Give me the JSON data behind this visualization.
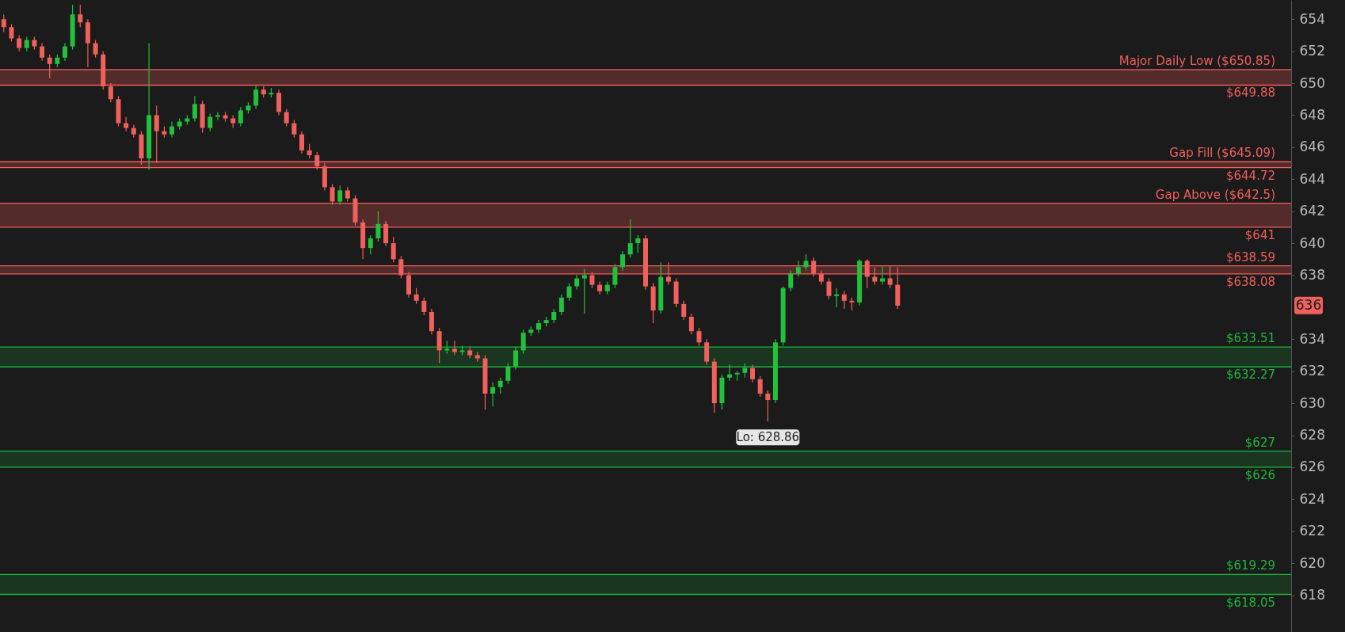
{
  "chart_data": {
    "type": "candlestick",
    "tick_labels": "y",
    "grid": false,
    "categories": [
      null,
      null,
      null,
      null,
      null,
      null,
      null,
      null,
      null,
      null,
      null,
      null,
      null,
      null,
      null,
      null,
      null,
      null,
      null,
      null,
      null,
      null,
      null,
      null,
      null,
      null,
      null,
      null,
      null,
      null,
      null,
      null,
      null,
      null,
      null,
      null,
      null,
      null,
      null,
      null,
      null,
      null,
      null,
      null,
      null,
      null,
      null,
      null,
      null,
      null,
      null,
      null,
      null,
      null,
      null,
      null,
      null,
      null,
      null,
      null,
      null,
      null,
      null,
      null,
      null,
      null,
      null,
      null,
      null,
      null,
      null,
      null,
      null,
      null,
      null,
      null,
      null,
      null,
      null,
      null,
      null,
      null,
      null,
      null,
      null,
      null,
      null,
      null,
      null,
      null,
      null,
      null,
      null,
      null,
      null,
      null,
      null,
      null,
      null,
      null,
      null,
      null,
      null,
      null,
      null,
      null,
      null,
      null,
      null,
      null,
      null,
      null,
      null,
      null,
      null,
      null,
      null,
      null,
      null,
      null,
      null,
      null,
      null,
      null,
      null,
      null,
      null,
      null,
      null,
      null,
      null,
      null,
      null,
      null,
      null,
      null,
      null,
      null,
      null,
      null,
      null,
      null,
      null,
      null,
      null,
      null,
      null,
      null,
      null,
      null,
      null,
      null,
      null,
      null,
      null,
      null,
      null,
      null,
      null,
      null,
      null,
      null,
      null,
      null,
      null,
      null,
      null,
      null,
      null
    ],
    "ohlc": [
      [
        654.0,
        654.3,
        653.2,
        653.5
      ],
      [
        653.5,
        653.7,
        652.6,
        652.8
      ],
      [
        652.8,
        653.0,
        652.0,
        652.2
      ],
      [
        652.2,
        652.9,
        652.0,
        652.7
      ],
      [
        652.7,
        652.9,
        652.1,
        652.3
      ],
      [
        652.3,
        652.5,
        651.4,
        651.6
      ],
      [
        651.6,
        651.8,
        650.3,
        651.2
      ],
      [
        651.2,
        651.8,
        651.0,
        651.6
      ],
      [
        651.6,
        652.5,
        651.4,
        652.3
      ],
      [
        652.3,
        654.9,
        652.1,
        654.3
      ],
      [
        654.3,
        654.9,
        653.5,
        653.8
      ],
      [
        653.8,
        654.0,
        651.0,
        652.5
      ],
      [
        652.5,
        652.7,
        651.6,
        651.8
      ],
      [
        651.8,
        652.0,
        649.6,
        649.8
      ],
      [
        649.8,
        650.0,
        648.8,
        649.0
      ],
      [
        649.0,
        649.2,
        647.3,
        647.5
      ],
      [
        647.5,
        647.9,
        647.0,
        647.2
      ],
      [
        647.2,
        647.4,
        646.6,
        646.8
      ],
      [
        646.8,
        647.0,
        644.9,
        645.3
      ],
      [
        645.3,
        652.5,
        644.6,
        648.0
      ],
      [
        648.0,
        648.6,
        645.0,
        647.0
      ],
      [
        647.0,
        647.3,
        646.6,
        646.8
      ],
      [
        646.8,
        647.6,
        646.6,
        647.3
      ],
      [
        647.3,
        647.8,
        647.1,
        647.6
      ],
      [
        647.6,
        648.0,
        647.4,
        647.8
      ],
      [
        647.8,
        649.2,
        647.6,
        648.7
      ],
      [
        648.7,
        648.9,
        646.9,
        647.2
      ],
      [
        647.2,
        648.1,
        647.0,
        647.9
      ],
      [
        647.9,
        648.2,
        647.7,
        648.0
      ],
      [
        648.0,
        648.2,
        647.6,
        647.8
      ],
      [
        647.8,
        648.0,
        647.2,
        647.5
      ],
      [
        647.5,
        648.5,
        647.3,
        648.3
      ],
      [
        648.3,
        648.8,
        648.1,
        648.6
      ],
      [
        648.6,
        649.9,
        648.4,
        649.6
      ],
      [
        649.6,
        649.8,
        649.1,
        649.3
      ],
      [
        649.3,
        649.7,
        649.1,
        649.4
      ],
      [
        649.4,
        649.6,
        648.0,
        648.2
      ],
      [
        648.2,
        648.4,
        647.3,
        647.5
      ],
      [
        647.5,
        647.7,
        646.6,
        646.8
      ],
      [
        646.8,
        647.0,
        645.6,
        645.8
      ],
      [
        645.8,
        646.2,
        645.3,
        645.5
      ],
      [
        645.5,
        645.7,
        644.6,
        644.8
      ],
      [
        644.8,
        645.0,
        643.3,
        643.5
      ],
      [
        643.5,
        643.7,
        642.4,
        642.6
      ],
      [
        642.6,
        643.6,
        642.4,
        643.3
      ],
      [
        643.3,
        643.5,
        642.6,
        642.8
      ],
      [
        642.8,
        643.0,
        641.1,
        641.3
      ],
      [
        641.3,
        641.5,
        639.0,
        639.7
      ],
      [
        639.7,
        640.5,
        639.3,
        640.3
      ],
      [
        640.3,
        642.0,
        640.1,
        641.2
      ],
      [
        641.2,
        641.4,
        639.8,
        640.0
      ],
      [
        640.0,
        640.4,
        638.8,
        639.0
      ],
      [
        639.0,
        639.2,
        637.8,
        638.0
      ],
      [
        638.0,
        638.2,
        636.6,
        636.8
      ],
      [
        636.8,
        637.2,
        636.2,
        636.4
      ],
      [
        636.4,
        636.6,
        635.5,
        635.7
      ],
      [
        635.7,
        635.9,
        634.3,
        634.5
      ],
      [
        634.5,
        634.7,
        632.5,
        633.3
      ],
      [
        633.3,
        633.9,
        633.1,
        633.4
      ],
      [
        633.4,
        633.9,
        633.0,
        633.2
      ],
      [
        633.2,
        633.6,
        633.0,
        633.3
      ],
      [
        633.3,
        633.5,
        632.8,
        633.0
      ],
      [
        633.0,
        633.2,
        632.6,
        632.8
      ],
      [
        632.8,
        633.0,
        629.6,
        630.6
      ],
      [
        630.6,
        631.3,
        629.8,
        631.0
      ],
      [
        631.0,
        631.6,
        630.6,
        631.4
      ],
      [
        631.4,
        632.5,
        631.2,
        632.3
      ],
      [
        632.3,
        633.5,
        632.1,
        633.3
      ],
      [
        633.3,
        634.6,
        633.1,
        634.4
      ],
      [
        634.4,
        634.8,
        634.2,
        634.6
      ],
      [
        634.6,
        635.2,
        634.4,
        635.0
      ],
      [
        635.0,
        635.4,
        634.8,
        635.2
      ],
      [
        635.2,
        635.9,
        635.0,
        635.7
      ],
      [
        635.7,
        636.8,
        635.5,
        636.6
      ],
      [
        636.6,
        637.5,
        636.4,
        637.3
      ],
      [
        637.3,
        638.0,
        637.1,
        637.8
      ],
      [
        637.8,
        638.4,
        635.6,
        638.0
      ],
      [
        638.0,
        638.2,
        637.2,
        637.4
      ],
      [
        637.4,
        637.6,
        636.8,
        637.0
      ],
      [
        637.0,
        637.6,
        636.8,
        637.4
      ],
      [
        637.4,
        638.7,
        637.2,
        638.5
      ],
      [
        638.5,
        639.5,
        638.3,
        639.3
      ],
      [
        639.3,
        641.5,
        639.1,
        640.0
      ],
      [
        640.0,
        640.5,
        639.4,
        640.3
      ],
      [
        640.3,
        640.5,
        637.1,
        637.3
      ],
      [
        637.3,
        637.5,
        635.0,
        635.8
      ],
      [
        635.8,
        638.8,
        635.6,
        637.9
      ],
      [
        637.9,
        638.8,
        637.4,
        637.6
      ],
      [
        637.6,
        637.8,
        636.0,
        636.2
      ],
      [
        636.2,
        636.4,
        635.2,
        635.4
      ],
      [
        635.4,
        635.6,
        634.3,
        634.5
      ],
      [
        634.5,
        634.7,
        633.6,
        633.8
      ],
      [
        633.8,
        634.0,
        632.4,
        632.6
      ],
      [
        632.6,
        632.8,
        629.4,
        630.0
      ],
      [
        630.0,
        631.8,
        629.6,
        631.6
      ],
      [
        631.6,
        632.4,
        631.4,
        631.8
      ],
      [
        631.8,
        632.0,
        631.4,
        631.9
      ],
      [
        631.9,
        632.5,
        631.6,
        632.2
      ],
      [
        632.2,
        632.4,
        631.3,
        631.5
      ],
      [
        631.5,
        631.7,
        630.4,
        630.6
      ],
      [
        630.6,
        630.8,
        628.86,
        630.2
      ],
      [
        630.2,
        634.0,
        630.0,
        633.8
      ],
      [
        633.8,
        637.3,
        633.6,
        637.2
      ],
      [
        637.2,
        638.3,
        637.0,
        638.1
      ],
      [
        638.1,
        638.9,
        637.9,
        638.5
      ],
      [
        638.5,
        639.3,
        638.3,
        638.9
      ],
      [
        638.9,
        639.1,
        637.9,
        638.1
      ],
      [
        638.1,
        638.3,
        637.4,
        637.6
      ],
      [
        637.6,
        637.8,
        636.5,
        636.7
      ],
      [
        636.7,
        637.2,
        636.0,
        636.8
      ],
      [
        636.8,
        637.0,
        635.9,
        636.4
      ],
      [
        636.4,
        636.6,
        635.8,
        636.3
      ],
      [
        636.3,
        639.0,
        636.1,
        638.9
      ],
      [
        638.9,
        639.0,
        637.2,
        637.9
      ],
      [
        637.9,
        638.5,
        637.4,
        637.6
      ],
      [
        637.6,
        638.6,
        637.4,
        637.8
      ],
      [
        637.8,
        638.6,
        637.2,
        637.4
      ],
      [
        637.4,
        638.5,
        635.9,
        636.1
      ],
      null,
      null,
      null,
      null,
      null,
      null,
      null,
      null,
      null,
      null,
      null,
      null,
      null,
      null,
      null,
      null,
      null,
      null,
      null,
      null,
      null,
      null,
      null,
      null,
      null,
      null,
      null,
      null,
      null,
      null,
      null,
      null,
      null,
      null,
      null,
      null,
      null,
      null,
      null,
      null,
      null,
      null,
      null,
      null,
      null,
      null,
      null,
      null,
      null,
      null,
      null
    ],
    "ylim": [
      615.7,
      655.2
    ],
    "yticks": [
      618,
      620,
      622,
      624,
      626,
      628,
      630,
      632,
      634,
      638,
      640,
      642,
      644,
      646,
      648,
      650,
      652,
      654
    ],
    "bands": [
      {
        "axis": "y",
        "from": 649.88,
        "to": 650.85,
        "color": "#532b2b"
      },
      {
        "axis": "y",
        "from": 644.72,
        "to": 645.09,
        "color": "#532b2b"
      },
      {
        "axis": "y",
        "from": 641,
        "to": 642.5,
        "color": "#532b2b"
      },
      {
        "axis": "y",
        "from": 638.08,
        "to": 638.59,
        "color": "#532b2b"
      },
      {
        "axis": "y",
        "from": 632.27,
        "to": 633.51,
        "color": "#1a3520"
      },
      {
        "axis": "y",
        "from": 626,
        "to": 627,
        "color": "#1a3520"
      },
      {
        "axis": "y",
        "from": 618.05,
        "to": 619.29,
        "color": "#1a3520"
      }
    ],
    "ref_lines": [
      {
        "axis": "y",
        "value": 650.85,
        "label": "Major Daily Low ($650.85)",
        "color": "#f25f5c"
      },
      {
        "axis": "y",
        "value": 649.88,
        "label": "$649.88",
        "color": "#f25f5c"
      },
      {
        "axis": "y",
        "value": 645.09,
        "label": "Gap Fill  ($645.09)",
        "color": "#f25f5c"
      },
      {
        "axis": "y",
        "value": 644.72,
        "label": "$644.72",
        "color": "#f25f5c"
      },
      {
        "axis": "y",
        "value": 642.5,
        "label": "Gap Above ($642.5)",
        "color": "#f25f5c"
      },
      {
        "axis": "y",
        "value": 641,
        "label": "$641",
        "color": "#f25f5c"
      },
      {
        "axis": "y",
        "value": 638.59,
        "label": "$638.59",
        "color": "#f25f5c"
      },
      {
        "axis": "y",
        "value": 638.08,
        "label": "$638.08",
        "color": "#f25f5c"
      },
      {
        "axis": "y",
        "value": 633.51,
        "label": "$633.51",
        "color": "#1db83a"
      },
      {
        "axis": "y",
        "value": 632.27,
        "label": "$632.27",
        "color": "#1db83a"
      },
      {
        "axis": "y",
        "value": 627,
        "label": "$627",
        "color": "#1db83a"
      },
      {
        "axis": "y",
        "value": 626,
        "label": "$626",
        "color": "#1db83a"
      },
      {
        "axis": "y",
        "value": 619.29,
        "label": "$619.29",
        "color": "#1db83a"
      },
      {
        "axis": "y",
        "value": 618.05,
        "label": "$618.05",
        "color": "#1db83a"
      }
    ],
    "annotations": [
      "Lo: 628.86",
      "636"
    ]
  }
}
